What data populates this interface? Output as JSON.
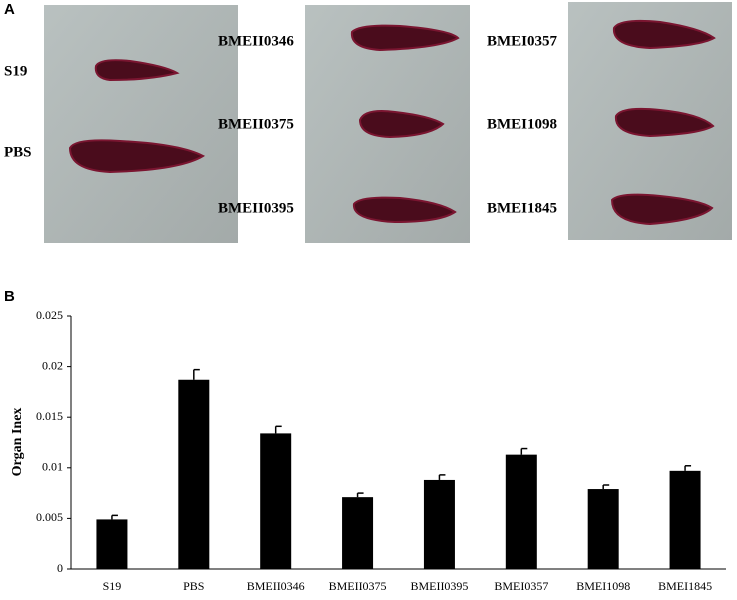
{
  "panels": [
    "A",
    "B"
  ],
  "photo_labels": [
    "S19",
    "PBS",
    "BMEII0346",
    "BMEII0375",
    "BMEII0395",
    "BMEI0357",
    "BMEI1098",
    "BMEI1845"
  ],
  "chart_data": {
    "type": "bar",
    "ylabel": "Organ Inex",
    "categories": [
      "S19",
      "PBS",
      "BMEII0346",
      "BMEII0375",
      "BMEII0395",
      "BMEI0357",
      "BMEI1098",
      "BMEI1845"
    ],
    "values": [
      0.0049,
      0.0187,
      0.0134,
      0.0071,
      0.0088,
      0.0113,
      0.0079,
      0.0097
    ],
    "errors": [
      0.0004,
      0.001,
      0.0007,
      0.0004,
      0.0005,
      0.0006,
      0.0004,
      0.0005
    ],
    "color": "#000000",
    "ylim": [
      0,
      0.025
    ],
    "yticks": [
      0,
      0.005,
      0.01,
      0.015,
      0.02,
      0.025
    ]
  }
}
